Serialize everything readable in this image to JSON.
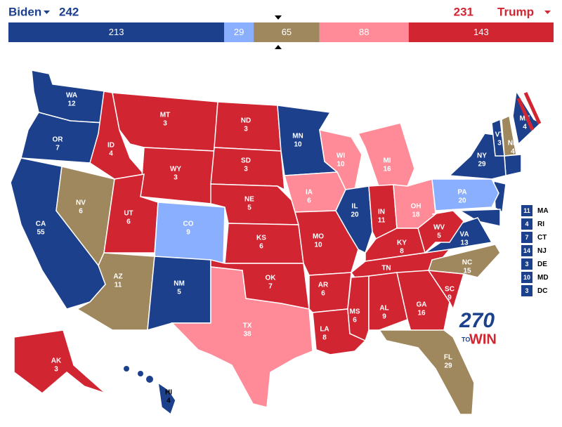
{
  "header": {
    "left_name": "Biden",
    "left_total": 242,
    "right_total": 231,
    "right_name": "Trump",
    "left_color": "#1c408c",
    "right_color": "#d22532"
  },
  "bar": {
    "segments": [
      {
        "value": 213,
        "color": "#1c408c"
      },
      {
        "value": 29,
        "color": "#8aafff"
      },
      {
        "value": 65,
        "color": "#a0885e"
      },
      {
        "value": 88,
        "color": "#ff8b98"
      },
      {
        "value": 143,
        "color": "#d22532"
      }
    ]
  },
  "states": [
    {
      "abbr": "WA",
      "ev": 12,
      "color": "#1c408c"
    },
    {
      "abbr": "OR",
      "ev": 7,
      "color": "#1c408c"
    },
    {
      "abbr": "CA",
      "ev": 55,
      "color": "#1c408c"
    },
    {
      "abbr": "NV",
      "ev": 6,
      "color": "#a0885e"
    },
    {
      "abbr": "ID",
      "ev": 4,
      "color": "#d22532"
    },
    {
      "abbr": "MT",
      "ev": 3,
      "color": "#d22532"
    },
    {
      "abbr": "WY",
      "ev": 3,
      "color": "#d22532"
    },
    {
      "abbr": "UT",
      "ev": 6,
      "color": "#d22532"
    },
    {
      "abbr": "CO",
      "ev": 9,
      "color": "#8aafff"
    },
    {
      "abbr": "AZ",
      "ev": 11,
      "color": "#a0885e"
    },
    {
      "abbr": "NM",
      "ev": 5,
      "color": "#1c408c"
    },
    {
      "abbr": "ND",
      "ev": 3,
      "color": "#d22532"
    },
    {
      "abbr": "SD",
      "ev": 3,
      "color": "#d22532"
    },
    {
      "abbr": "NE",
      "ev": 5,
      "color": "#d22532"
    },
    {
      "abbr": "KS",
      "ev": 6,
      "color": "#d22532"
    },
    {
      "abbr": "OK",
      "ev": 7,
      "color": "#d22532"
    },
    {
      "abbr": "TX",
      "ev": 38,
      "color": "#ff8b98"
    },
    {
      "abbr": "MN",
      "ev": 10,
      "color": "#1c408c"
    },
    {
      "abbr": "IA",
      "ev": 6,
      "color": "#ff8b98"
    },
    {
      "abbr": "MO",
      "ev": 10,
      "color": "#d22532"
    },
    {
      "abbr": "AR",
      "ev": 6,
      "color": "#d22532"
    },
    {
      "abbr": "LA",
      "ev": 8,
      "color": "#d22532"
    },
    {
      "abbr": "WI",
      "ev": 10,
      "color": "#ff8b98"
    },
    {
      "abbr": "IL",
      "ev": 20,
      "color": "#1c408c"
    },
    {
      "abbr": "MI",
      "ev": 16,
      "color": "#ff8b98"
    },
    {
      "abbr": "IN",
      "ev": 11,
      "color": "#d22532"
    },
    {
      "abbr": "OH",
      "ev": 18,
      "color": "#ff8b98"
    },
    {
      "abbr": "KY",
      "ev": 8,
      "color": "#d22532"
    },
    {
      "abbr": "TN",
      "ev": 11,
      "color": "#d22532"
    },
    {
      "abbr": "MS",
      "ev": 6,
      "color": "#d22532"
    },
    {
      "abbr": "AL",
      "ev": 9,
      "color": "#d22532"
    },
    {
      "abbr": "GA",
      "ev": 16,
      "color": "#d22532"
    },
    {
      "abbr": "FL",
      "ev": 29,
      "color": "#a0885e"
    },
    {
      "abbr": "SC",
      "ev": 9,
      "color": "#d22532"
    },
    {
      "abbr": "NC",
      "ev": 15,
      "color": "#a0885e"
    },
    {
      "abbr": "VA",
      "ev": 13,
      "color": "#1c408c"
    },
    {
      "abbr": "WV",
      "ev": 5,
      "color": "#d22532"
    },
    {
      "abbr": "PA",
      "ev": 20,
      "color": "#8aafff"
    },
    {
      "abbr": "NY",
      "ev": 29,
      "color": "#1c408c"
    },
    {
      "abbr": "VT",
      "ev": 3,
      "color": "#1c408c"
    },
    {
      "abbr": "NH",
      "ev": 4,
      "color": "#a0885e"
    },
    {
      "abbr": "ME",
      "ev": 4,
      "color": "#1c408c"
    },
    {
      "abbr": "AK",
      "ev": 3,
      "color": "#d22532"
    },
    {
      "abbr": "HI",
      "ev": 4,
      "color": "#1c408c"
    }
  ],
  "small_states": [
    {
      "abbr": "MA",
      "ev": 11
    },
    {
      "abbr": "RI",
      "ev": 4
    },
    {
      "abbr": "CT",
      "ev": 7
    },
    {
      "abbr": "NJ",
      "ev": 14
    },
    {
      "abbr": "DE",
      "ev": 3
    },
    {
      "abbr": "MD",
      "ev": 10
    },
    {
      "abbr": "DC",
      "ev": 3
    }
  ],
  "small_color": "#1c408c",
  "logo": {
    "number": "270",
    "small": "TO",
    "word": "WIN"
  }
}
